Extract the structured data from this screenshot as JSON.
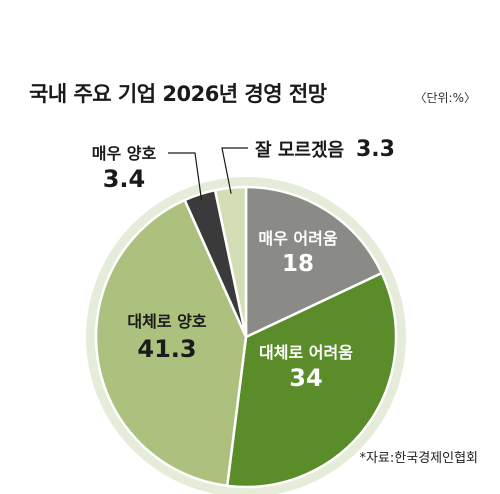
{
  "header": {
    "title": "국내 주요 기업 2026년 경영 전망",
    "unit": "〈단위:%〉"
  },
  "source": "*자료:한국경제인협회",
  "chart_data": {
    "type": "pie",
    "title": "국내 주요 기업 2026년 경영 전망",
    "unit": "%",
    "slices": [
      {
        "label": "매우 어려움",
        "value": 18,
        "value_text": "18",
        "color": "#8a8a87",
        "text_color": "#ffffff",
        "label_position": "inside"
      },
      {
        "label": "대체로 어려움",
        "value": 34,
        "value_text": "34",
        "color": "#5b8c2a",
        "text_color": "#ffffff",
        "label_position": "inside"
      },
      {
        "label": "대체로 양호",
        "value": 41.3,
        "value_text": "41.3",
        "color": "#adc17f",
        "text_color": "#1a1a1a",
        "label_position": "inside"
      },
      {
        "label": "매우 양호",
        "value": 3.4,
        "value_text": "3.4",
        "color": "#3a3a3a",
        "text_color": "#1a1a1a",
        "label_position": "outside-left"
      },
      {
        "label": "잘 모르겠음",
        "value": 3.3,
        "value_text": "3.3",
        "color": "#d3deb6",
        "text_color": "#1a1a1a",
        "label_position": "outside-right"
      }
    ],
    "start_angle": "12 o'clock",
    "direction": "clockwise",
    "ring_color": "#e6ecda"
  }
}
